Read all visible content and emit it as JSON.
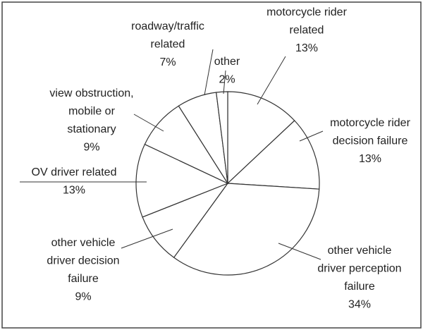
{
  "chart_data": {
    "type": "pie",
    "categories": [
      [
        "motorcycle rider",
        "related"
      ],
      [
        "motorcycle rider",
        "decision failure"
      ],
      [
        "other vehicle",
        "driver perception",
        "failure"
      ],
      [
        "other vehicle",
        "driver decision",
        "failure"
      ],
      [
        "OV driver related"
      ],
      [
        "view obstruction,",
        "mobile or",
        "stationary"
      ],
      [
        "roadway/traffic",
        "related"
      ],
      [
        "other"
      ]
    ],
    "values": [
      13,
      13,
      34,
      9,
      13,
      9,
      7,
      2
    ],
    "value_labels": [
      "13%",
      "13%",
      "34%",
      "9%",
      "13%",
      "9%",
      "7%",
      "2%"
    ],
    "color": "#ffffff"
  }
}
